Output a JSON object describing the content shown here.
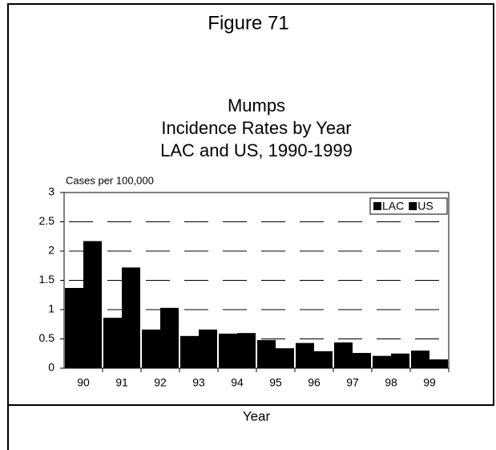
{
  "chart_data": {
    "type": "bar",
    "figure_label": "Figure 71",
    "title": [
      "Mumps",
      "Incidence Rates by Year",
      "LAC and US, 1990-1999"
    ],
    "y_axis_label": "Cases per 100,000",
    "x_axis_label": "Year",
    "categories": [
      "90",
      "91",
      "92",
      "93",
      "94",
      "95",
      "96",
      "97",
      "98",
      "99"
    ],
    "series": [
      {
        "name": "LAC",
        "color": "#000000",
        "values": [
          1.37,
          0.86,
          0.66,
          0.55,
          0.59,
          0.48,
          0.43,
          0.44,
          0.21,
          0.3
        ]
      },
      {
        "name": "US",
        "color": "#000000",
        "values": [
          2.17,
          1.72,
          1.03,
          0.66,
          0.6,
          0.34,
          0.29,
          0.26,
          0.25,
          0.15
        ]
      }
    ],
    "ylim": [
      0,
      3
    ],
    "yticks": [
      0,
      0.5,
      1,
      1.5,
      2,
      2.5,
      3
    ],
    "grid": true,
    "legend": "top-right"
  }
}
